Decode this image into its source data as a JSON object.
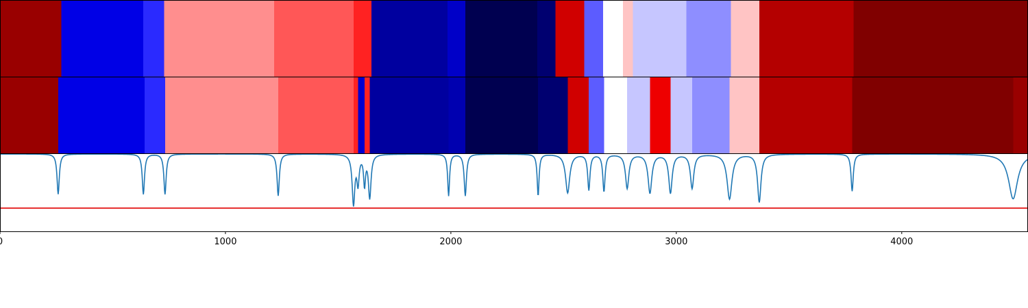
{
  "chart_data": {
    "type": "heatmap",
    "title": "",
    "xlabel": "",
    "ylabel": "",
    "xlim": [
      0,
      4560
    ],
    "xticks": [
      0,
      1000,
      2000,
      3000,
      4000
    ],
    "xtick_labels": [
      "0",
      "1000",
      "2000",
      "3000",
      "4000"
    ],
    "bands": [
      {
        "name": "",
        "segments": [
          {
            "start": 0,
            "end": 272,
            "color": "#990000"
          },
          {
            "start": 272,
            "end": 636,
            "color": "#0000e6"
          },
          {
            "start": 636,
            "end": 728,
            "color": "#2a2aff"
          },
          {
            "start": 728,
            "end": 1216,
            "color": "#ff8e8e"
          },
          {
            "start": 1216,
            "end": 1568,
            "color": "#ff5757"
          },
          {
            "start": 1568,
            "end": 1648,
            "color": "#ff2222"
          },
          {
            "start": 1648,
            "end": 1985,
            "color": "#00009f"
          },
          {
            "start": 1985,
            "end": 2064,
            "color": "#0000c8"
          },
          {
            "start": 2064,
            "end": 2384,
            "color": "#000050"
          },
          {
            "start": 2384,
            "end": 2464,
            "color": "#000070"
          },
          {
            "start": 2464,
            "end": 2592,
            "color": "#d00000"
          },
          {
            "start": 2592,
            "end": 2675,
            "color": "#5c5cff"
          },
          {
            "start": 2675,
            "end": 2763,
            "color": "#ffffff"
          },
          {
            "start": 2763,
            "end": 2808,
            "color": "#ffc4c4"
          },
          {
            "start": 2808,
            "end": 3044,
            "color": "#c6c6ff"
          },
          {
            "start": 3044,
            "end": 3242,
            "color": "#8e8eff"
          },
          {
            "start": 3242,
            "end": 3368,
            "color": "#ffc4c4"
          },
          {
            "start": 3368,
            "end": 3786,
            "color": "#b40000"
          },
          {
            "start": 3786,
            "end": 4560,
            "color": "#800000"
          }
        ]
      },
      {
        "name": "",
        "segments": [
          {
            "start": 0,
            "end": 258,
            "color": "#990000"
          },
          {
            "start": 258,
            "end": 641,
            "color": "#0000e6"
          },
          {
            "start": 641,
            "end": 732,
            "color": "#2a2aff"
          },
          {
            "start": 732,
            "end": 1234,
            "color": "#ff8e8e"
          },
          {
            "start": 1234,
            "end": 1568,
            "color": "#ff5757"
          },
          {
            "start": 1568,
            "end": 1588,
            "color": "#ff2222"
          },
          {
            "start": 1588,
            "end": 1617,
            "color": "#0000d0"
          },
          {
            "start": 1617,
            "end": 1640,
            "color": "#ff2222"
          },
          {
            "start": 1640,
            "end": 1990,
            "color": "#00009f"
          },
          {
            "start": 1990,
            "end": 2064,
            "color": "#0000b0"
          },
          {
            "start": 2064,
            "end": 2387,
            "color": "#000050"
          },
          {
            "start": 2387,
            "end": 2518,
            "color": "#000070"
          },
          {
            "start": 2518,
            "end": 2612,
            "color": "#d00000"
          },
          {
            "start": 2612,
            "end": 2679,
            "color": "#5c5cff"
          },
          {
            "start": 2679,
            "end": 2782,
            "color": "#ffffff"
          },
          {
            "start": 2782,
            "end": 2883,
            "color": "#c6c6ff"
          },
          {
            "start": 2883,
            "end": 2974,
            "color": "#ee0000"
          },
          {
            "start": 2974,
            "end": 3070,
            "color": "#c6c6ff"
          },
          {
            "start": 3070,
            "end": 3236,
            "color": "#8e8eff"
          },
          {
            "start": 3236,
            "end": 3368,
            "color": "#ffc4c4"
          },
          {
            "start": 3368,
            "end": 3780,
            "color": "#b40000"
          },
          {
            "start": 3780,
            "end": 4494,
            "color": "#800000"
          },
          {
            "start": 4494,
            "end": 4560,
            "color": "#990000"
          }
        ]
      }
    ],
    "signal": {
      "color": "#1f77b4",
      "threshold": 0.3,
      "threshold_color": "#e00000",
      "baseline": 1.0,
      "ylim": [
        0,
        1
      ],
      "dips": [
        {
          "x": 258,
          "depth": 0.52,
          "width": 6
        },
        {
          "x": 636,
          "depth": 0.52,
          "width": 6
        },
        {
          "x": 732,
          "depth": 0.52,
          "width": 6
        },
        {
          "x": 1234,
          "depth": 0.54,
          "width": 6
        },
        {
          "x": 1568,
          "depth": 0.64,
          "width": 7
        },
        {
          "x": 1588,
          "depth": 0.36,
          "width": 6
        },
        {
          "x": 1617,
          "depth": 0.38,
          "width": 5
        },
        {
          "x": 1640,
          "depth": 0.56,
          "width": 7
        },
        {
          "x": 1990,
          "depth": 0.54,
          "width": 5
        },
        {
          "x": 2064,
          "depth": 0.54,
          "width": 6
        },
        {
          "x": 2387,
          "depth": 0.54,
          "width": 5
        },
        {
          "x": 2518,
          "depth": 0.5,
          "width": 11
        },
        {
          "x": 2612,
          "depth": 0.46,
          "width": 6
        },
        {
          "x": 2679,
          "depth": 0.48,
          "width": 6
        },
        {
          "x": 2782,
          "depth": 0.44,
          "width": 9
        },
        {
          "x": 2883,
          "depth": 0.5,
          "width": 10
        },
        {
          "x": 2974,
          "depth": 0.5,
          "width": 9
        },
        {
          "x": 3070,
          "depth": 0.44,
          "width": 9
        },
        {
          "x": 3236,
          "depth": 0.58,
          "width": 13
        },
        {
          "x": 3368,
          "depth": 0.62,
          "width": 9
        },
        {
          "x": 3780,
          "depth": 0.48,
          "width": 6
        },
        {
          "x": 4494,
          "depth": 0.58,
          "width": 24
        }
      ]
    }
  }
}
